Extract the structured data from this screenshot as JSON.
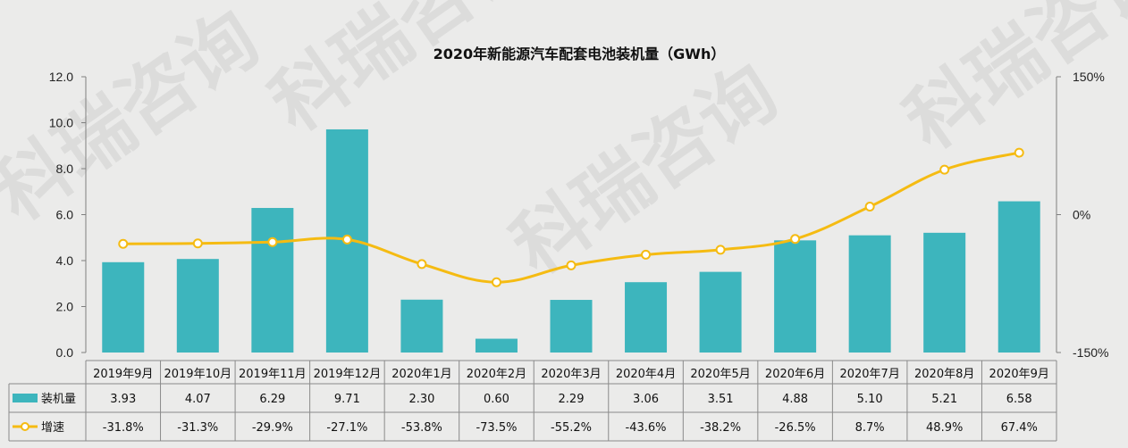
{
  "watermark": "科瑞咨询",
  "colors": {
    "bar": "#3db5bd",
    "line": "#f5bb12",
    "marker_fill": "#ffffff",
    "axis": "#7f7f7f",
    "background": "#ebebea"
  },
  "chart_data": {
    "type": "bar",
    "title": "2020年新能源汽车配套电池装机量（GWh）",
    "categories": [
      "2019年9月",
      "2019年10月",
      "2019年11月",
      "2019年12月",
      "2020年1月",
      "2020年2月",
      "2020年3月",
      "2020年4月",
      "2020年5月",
      "2020年6月",
      "2020年7月",
      "2020年8月",
      "2020年9月"
    ],
    "series": [
      {
        "name": "装机量",
        "type": "bar",
        "axis": "left",
        "values": [
          3.93,
          4.07,
          6.29,
          9.71,
          2.3,
          0.6,
          2.29,
          3.06,
          3.51,
          4.88,
          5.1,
          5.21,
          6.58
        ]
      },
      {
        "name": "增速",
        "type": "line",
        "axis": "right",
        "values": [
          -31.8,
          -31.3,
          -29.9,
          -27.1,
          -53.8,
          -73.5,
          -55.2,
          -43.6,
          -38.2,
          -26.5,
          8.7,
          48.9,
          67.4
        ]
      }
    ],
    "table_labels": {
      "bar": [
        "3.93",
        "4.07",
        "6.29",
        "9.71",
        "2.30",
        "0.60",
        "2.29",
        "3.06",
        "3.51",
        "4.88",
        "5.10",
        "5.21",
        "6.58"
      ],
      "line": [
        "-31.8%",
        "-31.3%",
        "-29.9%",
        "-27.1%",
        "-53.8%",
        "-73.5%",
        "-55.2%",
        "-43.6%",
        "-38.2%",
        "-26.5%",
        "8.7%",
        "48.9%",
        "67.4%"
      ]
    },
    "ylim_left": [
      0,
      12
    ],
    "yticks_left": [
      "0.0",
      "2.0",
      "4.0",
      "6.0",
      "8.0",
      "10.0",
      "12.0"
    ],
    "ylim_right": [
      -150,
      150
    ],
    "yticks_right": [
      "-150%",
      "0%",
      "150%"
    ],
    "legend": "data-table",
    "grid": false
  }
}
